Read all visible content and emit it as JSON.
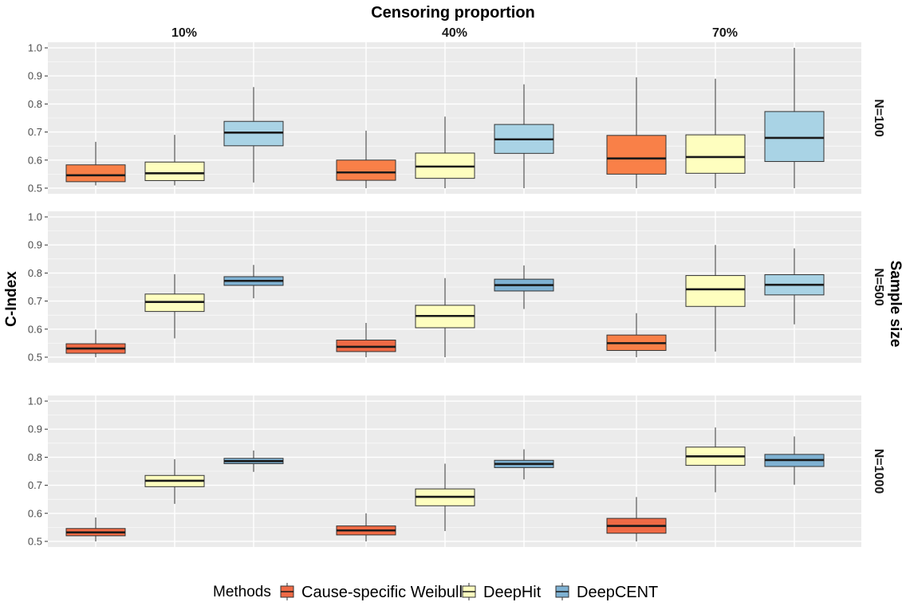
{
  "chart_data": {
    "type": "boxplot",
    "title": "Censoring proportion",
    "ylabel": "C-Index",
    "right_label": "Sample size",
    "ylim": [
      0.48,
      1.02
    ],
    "yticks": [
      0.5,
      0.6,
      0.7,
      0.8,
      0.9,
      1.0
    ],
    "ytick_labels": [
      "0.5",
      "0.6",
      "0.7",
      "0.8",
      "0.9",
      "1.0"
    ],
    "col_facets": [
      "10%",
      "40%",
      "70%"
    ],
    "row_facets": [
      "N=100",
      "N=500",
      "N=1000"
    ],
    "legend_title": "Methods",
    "methods": [
      {
        "name": "Cause-specific Weibull",
        "color": "#EF6A45",
        "color_alt": "#F98048"
      },
      {
        "name": "DeepHit",
        "color": "#FEFEBF",
        "color_alt": "#FEFEBF"
      },
      {
        "name": "DeepCENT",
        "color": "#7FB2D3",
        "color_alt": "#A9D3E5"
      }
    ],
    "panels": [
      {
        "row": "N=100",
        "col": "10%",
        "palette": "alt",
        "boxes": [
          {
            "method": "Cause-specific Weibull",
            "min": 0.51,
            "q1": 0.523,
            "median": 0.546,
            "q3": 0.583,
            "max": 0.665
          },
          {
            "method": "DeepHit",
            "min": 0.51,
            "q1": 0.527,
            "median": 0.553,
            "q3": 0.593,
            "max": 0.69
          },
          {
            "method": "DeepCENT",
            "min": 0.52,
            "q1": 0.651,
            "median": 0.698,
            "q3": 0.738,
            "max": 0.86
          }
        ]
      },
      {
        "row": "N=100",
        "col": "40%",
        "palette": "alt",
        "boxes": [
          {
            "method": "Cause-specific Weibull",
            "min": 0.5,
            "q1": 0.528,
            "median": 0.556,
            "q3": 0.6,
            "max": 0.705
          },
          {
            "method": "DeepHit",
            "min": 0.5,
            "q1": 0.535,
            "median": 0.577,
            "q3": 0.625,
            "max": 0.755
          },
          {
            "method": "DeepCENT",
            "min": 0.5,
            "q1": 0.624,
            "median": 0.674,
            "q3": 0.727,
            "max": 0.87
          }
        ]
      },
      {
        "row": "N=100",
        "col": "70%",
        "palette": "alt",
        "boxes": [
          {
            "method": "Cause-specific Weibull",
            "min": 0.5,
            "q1": 0.55,
            "median": 0.606,
            "q3": 0.688,
            "max": 0.895
          },
          {
            "method": "DeepHit",
            "min": 0.5,
            "q1": 0.553,
            "median": 0.611,
            "q3": 0.69,
            "max": 0.89
          },
          {
            "method": "DeepCENT",
            "min": 0.5,
            "q1": 0.595,
            "median": 0.679,
            "q3": 0.773,
            "max": 1.0
          }
        ]
      },
      {
        "row": "N=500",
        "col": "10%",
        "palette": "main",
        "boxes": [
          {
            "method": "Cause-specific Weibull",
            "min": 0.5,
            "q1": 0.514,
            "median": 0.531,
            "q3": 0.548,
            "max": 0.598
          },
          {
            "method": "DeepHit",
            "min": 0.567,
            "q1": 0.663,
            "median": 0.697,
            "q3": 0.725,
            "max": 0.796
          },
          {
            "method": "DeepCENT",
            "min": 0.71,
            "q1": 0.756,
            "median": 0.772,
            "q3": 0.787,
            "max": 0.829
          }
        ]
      },
      {
        "row": "N=500",
        "col": "40%",
        "palette": "main",
        "boxes": [
          {
            "method": "Cause-specific Weibull",
            "min": 0.5,
            "q1": 0.52,
            "median": 0.537,
            "q3": 0.561,
            "max": 0.622
          },
          {
            "method": "DeepHit",
            "min": 0.5,
            "q1": 0.605,
            "median": 0.647,
            "q3": 0.685,
            "max": 0.782
          },
          {
            "method": "DeepCENT",
            "min": 0.672,
            "q1": 0.736,
            "median": 0.757,
            "q3": 0.778,
            "max": 0.827
          }
        ]
      },
      {
        "row": "N=500",
        "col": "70%",
        "palette": "alt",
        "boxes": [
          {
            "method": "Cause-specific Weibull",
            "min": 0.5,
            "q1": 0.524,
            "median": 0.55,
            "q3": 0.579,
            "max": 0.657
          },
          {
            "method": "DeepHit",
            "min": 0.52,
            "q1": 0.681,
            "median": 0.742,
            "q3": 0.791,
            "max": 0.9
          },
          {
            "method": "DeepCENT",
            "min": 0.617,
            "q1": 0.722,
            "median": 0.758,
            "q3": 0.794,
            "max": 0.888
          }
        ]
      },
      {
        "row": "N=1000",
        "col": "10%",
        "palette": "main",
        "boxes": [
          {
            "method": "Cause-specific Weibull",
            "min": 0.5,
            "q1": 0.52,
            "median": 0.532,
            "q3": 0.546,
            "max": 0.585
          },
          {
            "method": "DeepHit",
            "min": 0.634,
            "q1": 0.695,
            "median": 0.716,
            "q3": 0.735,
            "max": 0.793
          },
          {
            "method": "DeepCENT",
            "min": 0.748,
            "q1": 0.777,
            "median": 0.786,
            "q3": 0.796,
            "max": 0.824
          }
        ]
      },
      {
        "row": "N=1000",
        "col": "40%",
        "palette": "main",
        "boxes": [
          {
            "method": "Cause-specific Weibull",
            "min": 0.5,
            "q1": 0.523,
            "median": 0.539,
            "q3": 0.555,
            "max": 0.6
          },
          {
            "method": "DeepHit",
            "min": 0.537,
            "q1": 0.627,
            "median": 0.659,
            "q3": 0.687,
            "max": 0.777
          },
          {
            "method": "DeepCENT",
            "min": 0.721,
            "q1": 0.763,
            "median": 0.776,
            "q3": 0.789,
            "max": 0.828
          }
        ]
      },
      {
        "row": "N=1000",
        "col": "70%",
        "palette": "main",
        "boxes": [
          {
            "method": "Cause-specific Weibull",
            "min": 0.5,
            "q1": 0.529,
            "median": 0.555,
            "q3": 0.582,
            "max": 0.658
          },
          {
            "method": "DeepHit",
            "min": 0.675,
            "q1": 0.771,
            "median": 0.803,
            "q3": 0.836,
            "max": 0.906
          },
          {
            "method": "DeepCENT",
            "min": 0.702,
            "q1": 0.767,
            "median": 0.79,
            "q3": 0.81,
            "max": 0.874
          }
        ]
      }
    ]
  }
}
